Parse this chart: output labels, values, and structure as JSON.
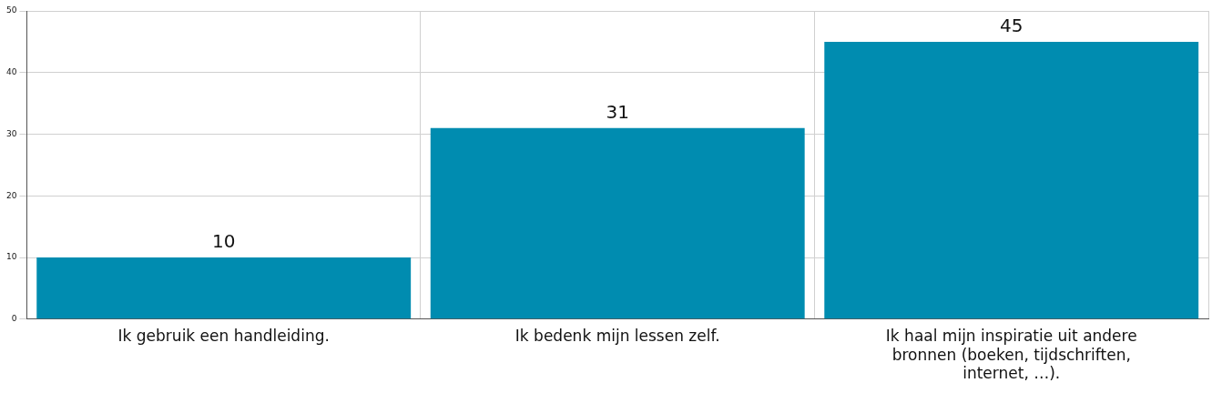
{
  "chart_data": {
    "type": "bar",
    "categories": [
      "Ik gebruik een handleiding.",
      "Ik bedenk mijn lessen zelf.",
      "Ik haal mijn inspiratie uit andere bronnen (boeken, tijdschriften, internet, …)."
    ],
    "values": [
      10,
      31,
      45
    ],
    "color": "#008cb0",
    "ylim": [
      0,
      50
    ],
    "yticks": [
      0,
      10,
      20,
      30,
      40,
      50
    ],
    "grid": true,
    "data_labels": true,
    "legend": false
  }
}
